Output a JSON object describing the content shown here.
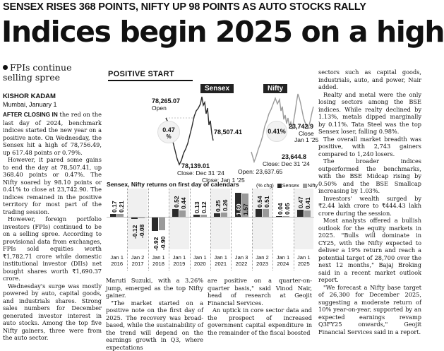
{
  "kicker": "SENSEX RISES 368 POINTS, NIFTY UP 98 POINTS AS AUTO STOCKS RALLY",
  "headline": "Indices begin 2025 on a high",
  "deck": "FPIs continue selling spree",
  "byline": "KISHOR KADAM",
  "dateline": "Mumbai, January 1",
  "col1": {
    "lead": "AFTER CLOSING IN",
    "p1_rest": " the red on the last day of 2024, benchmark indices started the new year on a positive note. On Wednesday, the Sensex hit a high of 78,756.49, up 617.48 points or 0.79%.",
    "p2": "However, it pared some gains to end the day at 78,507.41, up 368.40 points or 0.47%. The Nifty soared by 98.10 points or 0.41% to close at 23,742.90. The indices remained in the positive territory for most part of the trading session.",
    "p3": "However, foreign portfolio investors (FPIs) continued to be on a selling spree. According to provisional data from exchanges, FPIs sold equities worth ₹1,782.71 crore while domestic institutional investor (DIIs) net bought shares worth ₹1,690.37 crore.",
    "p4": "Wednesday's surge was mostly powered by auto, capital goods, and industrials shares. Strong sales numbers for December generated investor interest in auto stocks. Among the top five Nifty gainers, three were from the auto sector."
  },
  "col2": {
    "p1": "Maruti Suzuki, with a 3.26% jump, emerged as the top Nifty gainer.",
    "p2": "\"The market started on a positive note on the first day of 2025. The recovery was broad-based, while the sustainability of the trend will depend on the earnings growth in Q3, where expectations"
  },
  "col3": {
    "p1": "are positive on a quarter-on-quarter basis,\" said Vinod Nair, head of research at Geojit Financial Services.",
    "p2": "An uptick in core sector data and the prospect of increased government capital expenditure in the remainder of the fiscal boosted"
  },
  "col4": {
    "p1": "sectors such as capital goods, industrials, auto, and power, Nair added.",
    "p2": "Realty and metal were the only losing sectors among the BSE indices. While realty declined by 1.13%, metals dipped marginally by 0.11%. Tata Steel was the top Sensex loser, falling 0.98%.",
    "p3": "The overall market breadth was positive, with 2,743 gainers compared to 1,240 losers.",
    "p4": "The broader indices outperformed the benchmarks, with the BSE Midcap rising by 0.50% and the BSE Smallcap increasing by 1.03%.",
    "p5": "Investors' wealth surged by ₹2.44 lakh crore to ₹444.43 lakh crore during the session.",
    "p6": "Most analysts offered a bullish outlook for the equity markets in 2025. \"Bulls will dominate in CY25, with the Nifty expected to deliver a 19% return and reach a potential target of 28,700 over the next 12 months,\" Bajaj Broking said in a recent market outlook report.",
    "p7": "\"We forecast a Nifty base target of 26,300 for December 2025, suggesting a moderate return of 10% year-on-year, supported by an expected earnings revamp Q3FY25 onwards,\" Geojit Financial Services said in a report."
  },
  "graphic": {
    "title_a": "POSITIVE",
    "title_b": " START",
    "sensex_tab": "Sensex",
    "nifty_tab": "Nifty",
    "sensex": {
      "open_value": "78,265.07",
      "open_label": "Open",
      "close_value": "78,507.41",
      "close_label": "Close: Jan 1 '25",
      "prev_value": "78,139.01",
      "prev_label": "Close: Dec 31 '24",
      "change": "0.47",
      "change_unit": "%"
    },
    "nifty": {
      "close_value": "23,742.9",
      "close_label": "Close",
      "close_date": "Jan 1 '25",
      "change": "0.41%",
      "prev_value": "23,644.8",
      "prev_label": "Close: Dec 31 '24",
      "open_label": "Open: 23,637.65"
    },
    "colors": {
      "sensex": "#2b2b2b",
      "nifty": "#9a9a9a",
      "tab_bg": "#222222"
    }
  },
  "chart_data": {
    "type": "bar",
    "title": "Sensex, Nifty returns on first day of calendars",
    "unit_label": "(% chg)",
    "categories": [
      "Jan 1 2016",
      "Jan 2 2017",
      "Jan 1 2018",
      "Jan 1 2019",
      "Jan 1 2020",
      "Jan 1 2021",
      "Jan 3 2022",
      "Jan 2 2023",
      "Jan 1 2024",
      "Jan 1 2025"
    ],
    "series": [
      {
        "name": "Sensex",
        "values": [
          0.17,
          -0.12,
          -0.92,
          0.52,
          0.13,
          0.25,
          1.6,
          0.54,
          0.04,
          0.47
        ]
      },
      {
        "name": "Nifty",
        "values": [
          0.21,
          -0.08,
          -0.9,
          0.44,
          0.12,
          0.26,
          1.57,
          0.51,
          0.05,
          0.41
        ]
      }
    ],
    "value_labels": {
      "Sensex": [
        "0.17",
        "-0.12",
        "-0.92",
        "0.52",
        "0.13",
        "0.25",
        "1.60",
        "0.54",
        "0.04",
        "0.47"
      ],
      "Nifty": [
        "0.21",
        "-0.08",
        "-0.90",
        "0.44",
        "0.12",
        "0.26",
        "1.57",
        "0.51",
        "0.05",
        "0.41"
      ]
    },
    "ylim": [
      -1.0,
      1.7
    ],
    "legend": "top-right"
  }
}
